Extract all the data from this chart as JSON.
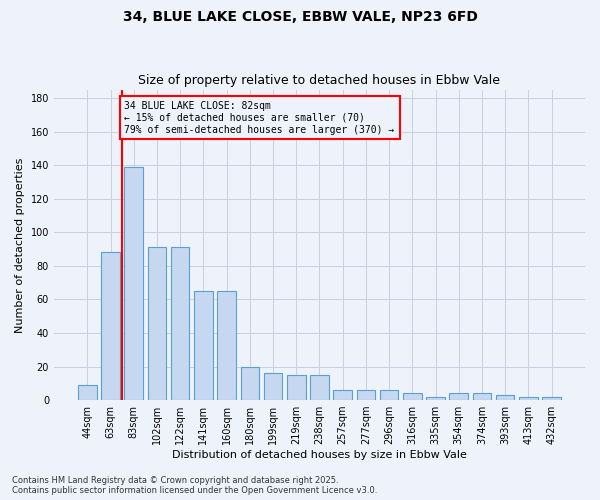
{
  "title": "34, BLUE LAKE CLOSE, EBBW VALE, NP23 6FD",
  "subtitle": "Size of property relative to detached houses in Ebbw Vale",
  "xlabel": "Distribution of detached houses by size in Ebbw Vale",
  "ylabel": "Number of detached properties",
  "categories": [
    "44sqm",
    "63sqm",
    "83sqm",
    "102sqm",
    "122sqm",
    "141sqm",
    "160sqm",
    "180sqm",
    "199sqm",
    "219sqm",
    "238sqm",
    "257sqm",
    "277sqm",
    "296sqm",
    "316sqm",
    "335sqm",
    "354sqm",
    "374sqm",
    "393sqm",
    "413sqm",
    "432sqm"
  ],
  "values": [
    9,
    88,
    139,
    91,
    91,
    65,
    65,
    20,
    16,
    15,
    15,
    6,
    6,
    6,
    4,
    2,
    4,
    4,
    3,
    2,
    2
  ],
  "bar_color": "#c5d8f0",
  "bar_edge_color": "#5a9fd4",
  "grid_color": "#c8d0e0",
  "bg_color": "#eef2fa",
  "vline_x": 1.5,
  "vline_color": "red",
  "annotation_box_text": "34 BLUE LAKE CLOSE: 82sqm\n← 15% of detached houses are smaller (70)\n79% of semi-detached houses are larger (370) →",
  "ylim": [
    0,
    185
  ],
  "yticks": [
    0,
    20,
    40,
    60,
    80,
    100,
    120,
    140,
    160,
    180
  ],
  "footnote": "Contains HM Land Registry data © Crown copyright and database right 2025.\nContains public sector information licensed under the Open Government Licence v3.0.",
  "title_fontsize": 10,
  "subtitle_fontsize": 9,
  "axis_label_fontsize": 8,
  "tick_fontsize": 7,
  "footnote_fontsize": 6,
  "ann_fontsize": 7
}
